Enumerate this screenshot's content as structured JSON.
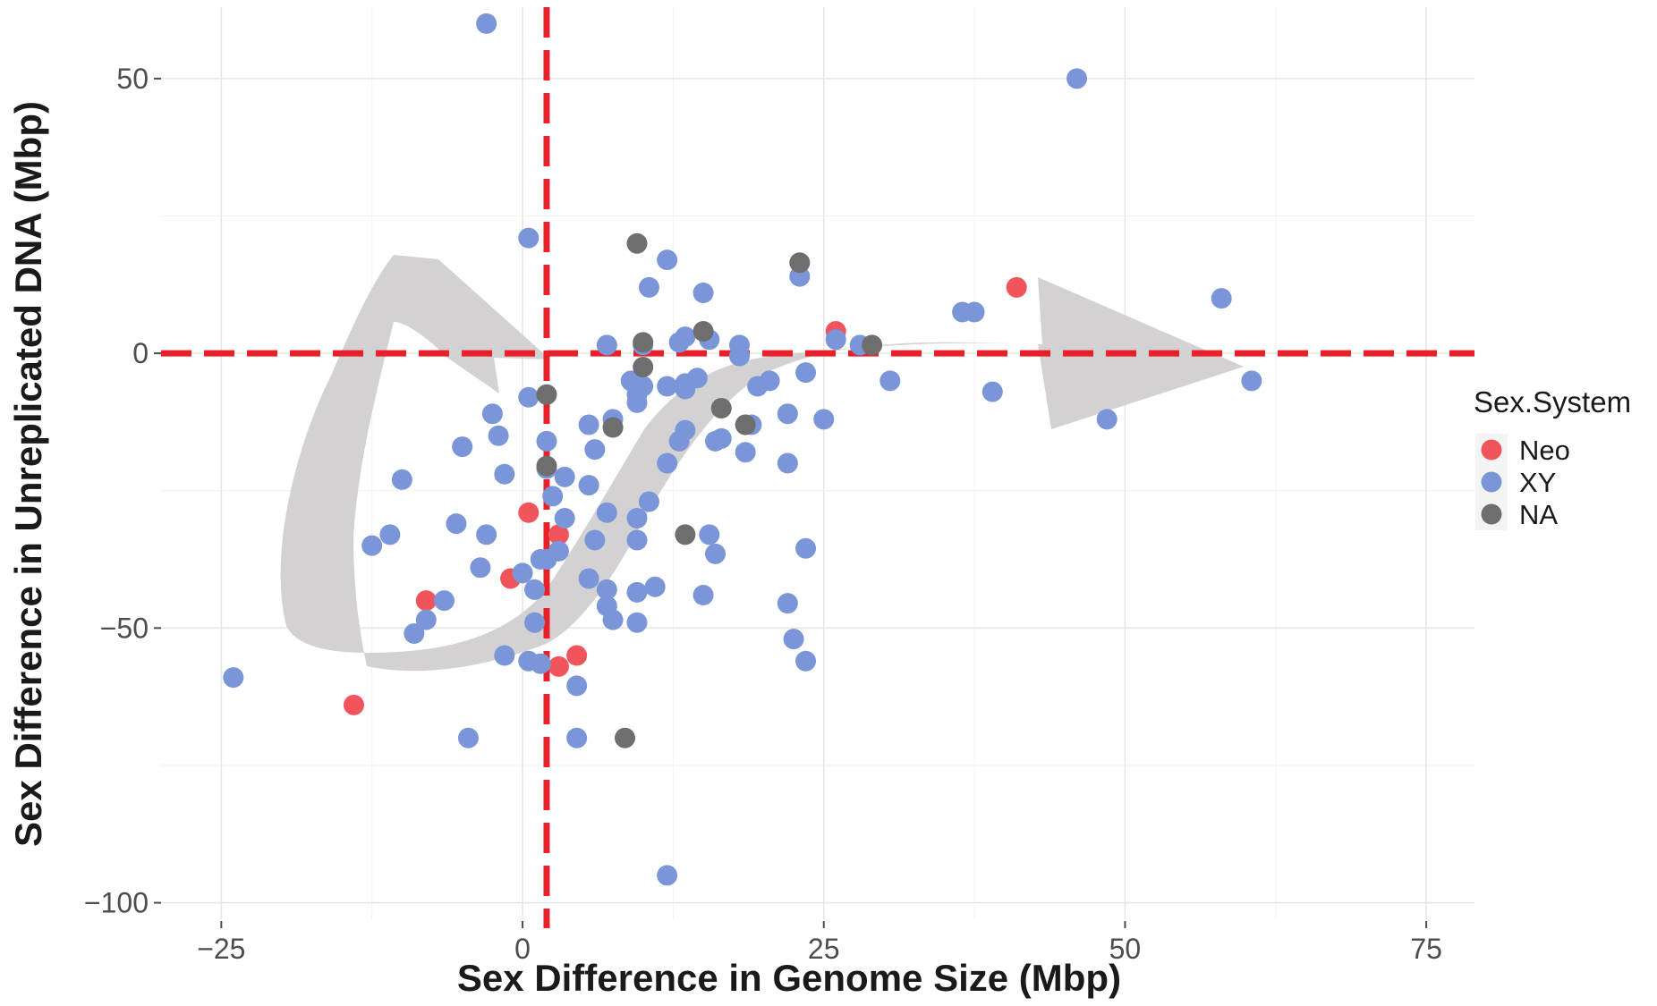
{
  "chart_data": {
    "type": "scatter",
    "title": "",
    "xlabel": "Sex Difference in Genome Size (Mbp)",
    "ylabel": "Sex Difference in Unreplicated DNA (Mbp)",
    "xlim": [
      -30,
      79
    ],
    "ylim": [
      -103,
      63
    ],
    "x_ticks": [
      -25,
      0,
      25,
      50,
      75
    ],
    "y_ticks": [
      -100,
      -50,
      0,
      50
    ],
    "x_tick_labels": [
      "−25",
      "0",
      "25",
      "50",
      "75"
    ],
    "y_tick_labels": [
      "−100",
      "−50",
      "0",
      "50"
    ],
    "grid": true,
    "reference_lines": {
      "vertical_x": 2,
      "horizontal_y": 0,
      "color": "#e8202a",
      "style": "dashed"
    },
    "legend": {
      "title": "Sex.System",
      "placement": "right",
      "entries": [
        {
          "label": "Neo",
          "color": "#f2545b"
        },
        {
          "label": "XY",
          "color": "#7a96d8"
        },
        {
          "label": "NA",
          "color": "#6e6e6e"
        }
      ]
    },
    "series": [
      {
        "name": "Neo",
        "color": "#f2545b",
        "points": [
          [
            -14,
            -64
          ],
          [
            -8,
            -45
          ],
          [
            -1,
            -41
          ],
          [
            0.5,
            -29
          ],
          [
            3,
            -33
          ],
          [
            4.5,
            -55
          ],
          [
            3,
            -57
          ],
          [
            26,
            4
          ],
          [
            41,
            12
          ]
        ]
      },
      {
        "name": "XY",
        "color": "#7a96d8",
        "points": [
          [
            -3,
            60
          ],
          [
            46,
            50
          ],
          [
            0.5,
            21
          ],
          [
            12,
            17
          ],
          [
            10.5,
            12
          ],
          [
            23,
            14
          ],
          [
            15,
            11
          ],
          [
            58,
            10
          ],
          [
            36.5,
            7.5
          ],
          [
            37.5,
            7.5
          ],
          [
            7,
            1.5
          ],
          [
            10,
            1.5
          ],
          [
            13,
            2
          ],
          [
            13.5,
            3
          ],
          [
            15.5,
            2.5
          ],
          [
            18,
            1.5
          ],
          [
            26,
            2.5
          ],
          [
            28,
            1.5
          ],
          [
            60.5,
            -5
          ],
          [
            48.5,
            -12
          ],
          [
            39,
            -7
          ],
          [
            30.5,
            -5
          ],
          [
            23.5,
            -3.5
          ],
          [
            20.5,
            -5
          ],
          [
            19.5,
            -6
          ],
          [
            18,
            -0.5
          ],
          [
            14.5,
            -4.5
          ],
          [
            13.5,
            -5.5
          ],
          [
            13.5,
            -6.5
          ],
          [
            12,
            -6
          ],
          [
            9,
            -5
          ],
          [
            10,
            -6
          ],
          [
            9.5,
            -7.5
          ],
          [
            9.5,
            -9
          ],
          [
            0.5,
            -8
          ],
          [
            -2.5,
            -11
          ],
          [
            -2,
            -15
          ],
          [
            -5,
            -17
          ],
          [
            -10,
            -23
          ],
          [
            -1.5,
            -22
          ],
          [
            2,
            -16
          ],
          [
            2,
            -21
          ],
          [
            5.5,
            -13
          ],
          [
            7.5,
            -12
          ],
          [
            6,
            -17.5
          ],
          [
            3.5,
            -22.5
          ],
          [
            5.5,
            -24
          ],
          [
            2.5,
            -26
          ],
          [
            3.5,
            -30
          ],
          [
            7,
            -29
          ],
          [
            9.5,
            -30
          ],
          [
            10.5,
            -27
          ],
          [
            12,
            -20
          ],
          [
            13.5,
            -14
          ],
          [
            13,
            -16
          ],
          [
            16,
            -16
          ],
          [
            16.5,
            -15.5
          ],
          [
            18.5,
            -13
          ],
          [
            19,
            -13
          ],
          [
            18.5,
            -18
          ],
          [
            22,
            -11
          ],
          [
            25,
            -12
          ],
          [
            22,
            -20
          ],
          [
            -5.5,
            -31
          ],
          [
            -3,
            -33
          ],
          [
            -11,
            -33
          ],
          [
            -12.5,
            -35
          ],
          [
            -3.5,
            -39
          ],
          [
            0,
            -40
          ],
          [
            1,
            -43
          ],
          [
            1.5,
            -37.5
          ],
          [
            2,
            -37.5
          ],
          [
            3,
            -36
          ],
          [
            6,
            -34
          ],
          [
            9.5,
            -34
          ],
          [
            15.5,
            -33
          ],
          [
            16,
            -36.5
          ],
          [
            5.5,
            -41
          ],
          [
            7,
            -43
          ],
          [
            7,
            -46
          ],
          [
            9.5,
            -43.5
          ],
          [
            11,
            -42.5
          ],
          [
            15,
            -44
          ],
          [
            7.5,
            -48.5
          ],
          [
            9.5,
            -49
          ],
          [
            1,
            -49
          ],
          [
            -6.5,
            -45
          ],
          [
            -8,
            -48.5
          ],
          [
            -9,
            -51
          ],
          [
            -1.5,
            -55
          ],
          [
            0.5,
            -56
          ],
          [
            1.5,
            -56.5
          ],
          [
            4.5,
            -60.5
          ],
          [
            -4.5,
            -70
          ],
          [
            4.5,
            -70
          ],
          [
            -24,
            -59
          ],
          [
            22,
            -45.5
          ],
          [
            22.5,
            -52
          ],
          [
            23.5,
            -56
          ],
          [
            23.5,
            -35.5
          ],
          [
            12,
            -95
          ]
        ]
      },
      {
        "name": "NA",
        "color": "#6e6e6e",
        "points": [
          [
            9.5,
            20
          ],
          [
            23,
            16.5
          ],
          [
            15,
            4
          ],
          [
            10,
            2
          ],
          [
            29,
            1.5
          ],
          [
            10,
            -2.5
          ],
          [
            2,
            -7.5
          ],
          [
            7.5,
            -13.5
          ],
          [
            16.5,
            -10
          ],
          [
            18.5,
            -13
          ],
          [
            2,
            -20.5
          ],
          [
            13.5,
            -33
          ],
          [
            8.5,
            -70
          ]
        ]
      }
    ]
  }
}
